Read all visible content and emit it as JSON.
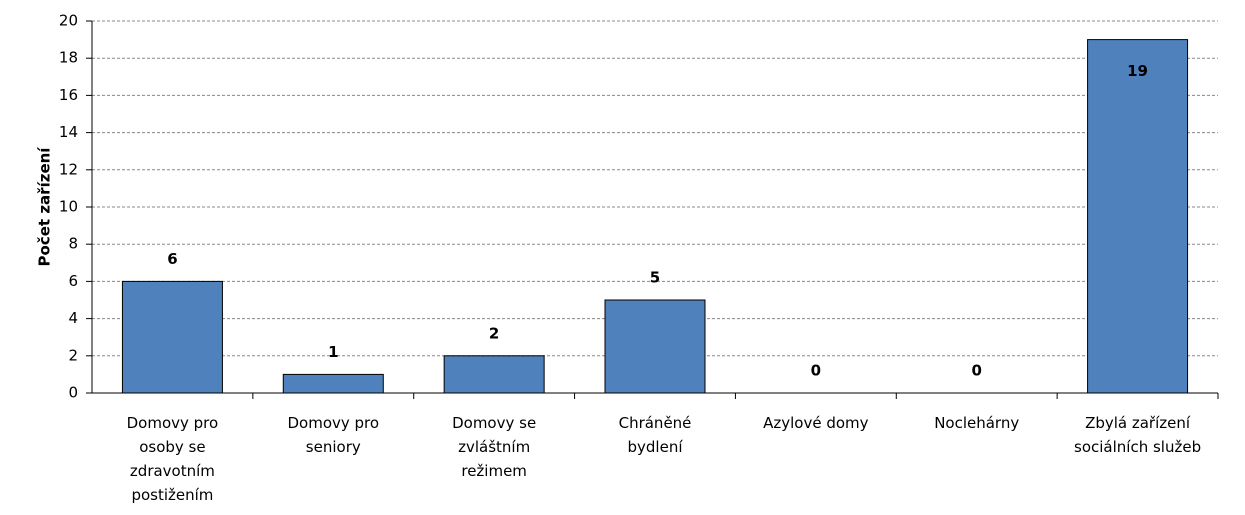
{
  "chart_data": {
    "type": "bar",
    "y_label": "Počet zařízení",
    "categories": [
      "Domovy pro osoby se zdravotním postižením",
      "Domovy pro seniory",
      "Domovy se zvláštním režimem",
      "Chráněné bydlení",
      "Azylové domy",
      "Noclehárny",
      "Zbylá zařízení sociálních služeb"
    ],
    "values": [
      6,
      1,
      2,
      5,
      0,
      0,
      19
    ],
    "color": "#4f81bd",
    "ylim": [
      0,
      20
    ],
    "yticks": [
      0,
      2,
      4,
      6,
      8,
      10,
      12,
      14,
      16,
      18,
      20
    ],
    "grid": true
  }
}
